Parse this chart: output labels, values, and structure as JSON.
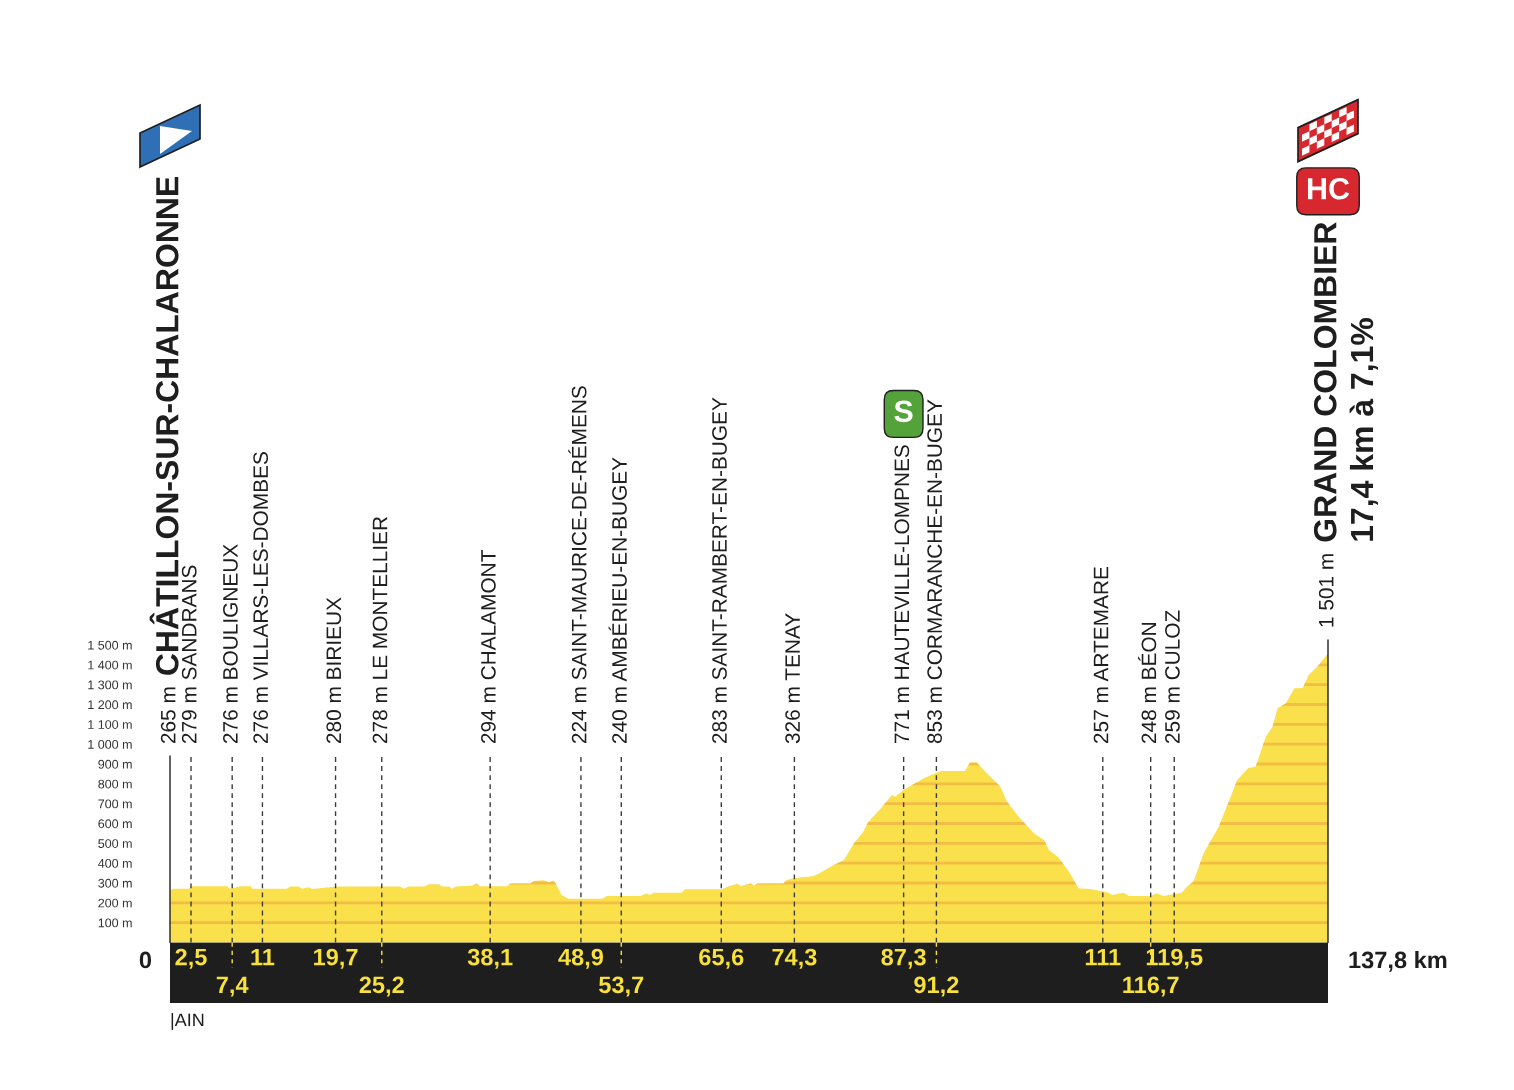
{
  "chart_data": {
    "type": "area",
    "color": "#fae04b",
    "x": [
      0,
      0.4,
      2.2,
      2.7,
      6.8,
      7.1,
      8.4,
      9.6,
      9.8,
      13.9,
      14.3,
      15.3,
      15.7,
      16.5,
      16.9,
      19.9,
      27.4,
      27.8,
      28.4,
      30.2,
      30.8,
      32.0,
      32.4,
      33.2,
      33.6,
      34.0,
      35.9,
      36.5,
      36.9,
      40.1,
      40.5,
      42.9,
      43.3,
      44.5,
      45.1,
      45.6,
      45.9,
      46.6,
      47.4,
      51.4,
      52.0,
      56.0,
      56.7,
      57.1,
      57.6,
      60.9,
      61.3,
      65.7,
      66.3,
      67.5,
      67.9,
      69.1,
      69.5,
      69.9,
      73.0,
      73.4,
      74.2,
      76.6,
      77.6,
      79.0,
      80.2,
      81.4,
      82.5,
      83.1,
      84.5,
      85.9,
      86.3,
      87.3,
      89.7,
      91.7,
      94.6,
      95.2,
      96.0,
      97.2,
      98.8,
      99.6,
      101.0,
      102.8,
      104.0,
      104.6,
      105.7,
      107.1,
      108.1,
      109.7,
      111.7,
      112.1,
      113.5,
      114.1,
      116.7,
      117.4,
      118.2,
      120.4,
      121.0,
      121.8,
      123.0,
      124.8,
      127.0,
      128.3,
      129.2,
      130.4,
      131.2,
      131.8,
      132.8,
      133.8,
      134.8,
      135.5,
      136.7,
      137.8
    ],
    "values": [
      265,
      271,
      271,
      283,
      283,
      271,
      283,
      283,
      271,
      271,
      282,
      282,
      271,
      278,
      270,
      282,
      282,
      271,
      282,
      282,
      293,
      293,
      282,
      282,
      271,
      282,
      286,
      297,
      283,
      283,
      298,
      298,
      310,
      314,
      302,
      312,
      298,
      240,
      221,
      221,
      234,
      234,
      248,
      239,
      251,
      251,
      268,
      268,
      281,
      295,
      285,
      298,
      288,
      298,
      298,
      315,
      324,
      335,
      357,
      391,
      416,
      500,
      559,
      609,
      672,
      744,
      735,
      769,
      828,
      865,
      865,
      907,
      907,
      853,
      786,
      710,
      634,
      551,
      517,
      466,
      430,
      349,
      273,
      268,
      251,
      240,
      251,
      234,
      234,
      248,
      234,
      251,
      281,
      307,
      450,
      584,
      819,
      878,
      887,
      1038,
      1088,
      1181,
      1206,
      1282,
      1283,
      1349,
      1399,
      1458
    ],
    "xlim": [
      0,
      137.8
    ],
    "ylim": [
      0,
      1500
    ],
    "xticks": [
      {
        "value": 2.5,
        "label": "2,5"
      },
      11,
      {
        "value": 19.7,
        "label": "19,7"
      },
      {
        "value": 38.1,
        "label": "38,1"
      },
      {
        "value": 48.9,
        "label": "48,9"
      },
      {
        "value": 65.6,
        "label": "65,6"
      },
      {
        "value": 74.3,
        "label": "74,3"
      },
      {
        "value": 87.3,
        "label": "87,3"
      },
      111,
      {
        "value": 119.5,
        "label": "119,5"
      }
    ],
    "x2lim": [
      0,
      137.8
    ],
    "x2ticks": [
      {
        "value": 7.4,
        "label": "7,4"
      },
      {
        "value": 25.2,
        "label": "25,2"
      },
      {
        "value": 53.7,
        "label": "53,7"
      },
      {
        "value": 91.2,
        "label": "91,2"
      },
      {
        "value": 116.7,
        "label": "116,7"
      }
    ],
    "yticks": [
      {
        "value": 100,
        "label": "100 m"
      },
      {
        "value": 200,
        "label": "200 m"
      },
      {
        "value": 300,
        "label": "300 m"
      },
      {
        "value": 400,
        "label": "400 m"
      },
      {
        "value": 500,
        "label": "500 m"
      },
      {
        "value": 600,
        "label": "600 m"
      },
      {
        "value": 700,
        "label": "700 m"
      },
      {
        "value": 800,
        "label": "800 m"
      },
      {
        "value": 900,
        "label": "900 m"
      },
      {
        "value": 1000,
        "label": "1 000 m"
      },
      {
        "value": 1100,
        "label": "1 100 m"
      },
      {
        "value": 1200,
        "label": "1 200 m"
      },
      {
        "value": 1300,
        "label": "1 300 m"
      },
      {
        "value": 1400,
        "label": "1 400 m"
      },
      {
        "value": 1500,
        "label": "1 500 m"
      }
    ],
    "grid": "y",
    "ref_lines": [
      {
        "axis": "x",
        "value": 0,
        "label": "265 m",
        "line_style": "solid",
        "color": "#1e1e1e"
      },
      {
        "axis": "x",
        "value": 2.5,
        "label": "279 m SANDRANS",
        "line_style": "dashed",
        "color": "#3c3c3c"
      },
      {
        "axis": "x",
        "value": 7.4,
        "label": "276 m BOULIGNEUX",
        "line_style": "dashed",
        "color": "#3c3c3c"
      },
      {
        "axis": "x",
        "value": 11,
        "label": "276 m VILLARS-LES-DOMBES",
        "line_style": "dashed",
        "color": "#3c3c3c"
      },
      {
        "axis": "x",
        "value": 19.7,
        "label": "280 m BIRIEUX",
        "line_style": "dashed",
        "color": "#3c3c3c"
      },
      {
        "axis": "x",
        "value": 25.2,
        "label": "278 m LE MONTELLIER",
        "line_style": "dashed",
        "color": "#3c3c3c"
      },
      {
        "axis": "x",
        "value": 38.1,
        "label": "294 m CHALAMONT",
        "line_style": "dashed",
        "color": "#3c3c3c"
      },
      {
        "axis": "x",
        "value": 48.9,
        "label": "224 m SAINT-MAURICE-DE-RÉMENS",
        "line_style": "dashed",
        "color": "#3c3c3c"
      },
      {
        "axis": "x",
        "value": 53.7,
        "label": "240 m AMBÉRIEU-EN-BUGEY",
        "line_style": "dashed",
        "color": "#3c3c3c"
      },
      {
        "axis": "x",
        "value": 65.6,
        "label": "283 m SAINT-RAMBERT-EN-BUGEY",
        "line_style": "dashed",
        "color": "#3c3c3c"
      },
      {
        "axis": "x",
        "value": 74.3,
        "label": "326 m TENAY",
        "line_style": "dashed",
        "color": "#3c3c3c"
      },
      {
        "axis": "x",
        "value": 87.3,
        "label": "771 m HAUTEVILLE-LOMPNES",
        "line_style": "dashed",
        "color": "#3c3c3c"
      },
      {
        "axis": "x",
        "value": 91.2,
        "label": "853 m CORMARANCHE-EN-BUGEY",
        "line_style": "dashed",
        "color": "#3c3c3c"
      },
      {
        "axis": "x",
        "value": 111,
        "label": "257 m ARTEMARE",
        "line_style": "dashed",
        "color": "#3c3c3c"
      },
      {
        "axis": "x",
        "value": 116.7,
        "label": "248 m BÉON",
        "line_style": "dashed",
        "color": "#3c3c3c"
      },
      {
        "axis": "x",
        "value": 119.5,
        "label": "259 m CULOZ",
        "line_style": "dashed",
        "color": "#3c3c3c"
      },
      {
        "axis": "x",
        "value": 137.8,
        "label": "1 501 m",
        "line_style": "solid",
        "color": "#1e1e1e"
      }
    ],
    "annotations": [
      "CHÂTILLON-SUR-CHALARONNE",
      "GRAND COLOMBIER",
      "17,4 km à 7,1%",
      "HC",
      "S",
      "0",
      "137,8 km",
      "|AIN"
    ]
  }
}
